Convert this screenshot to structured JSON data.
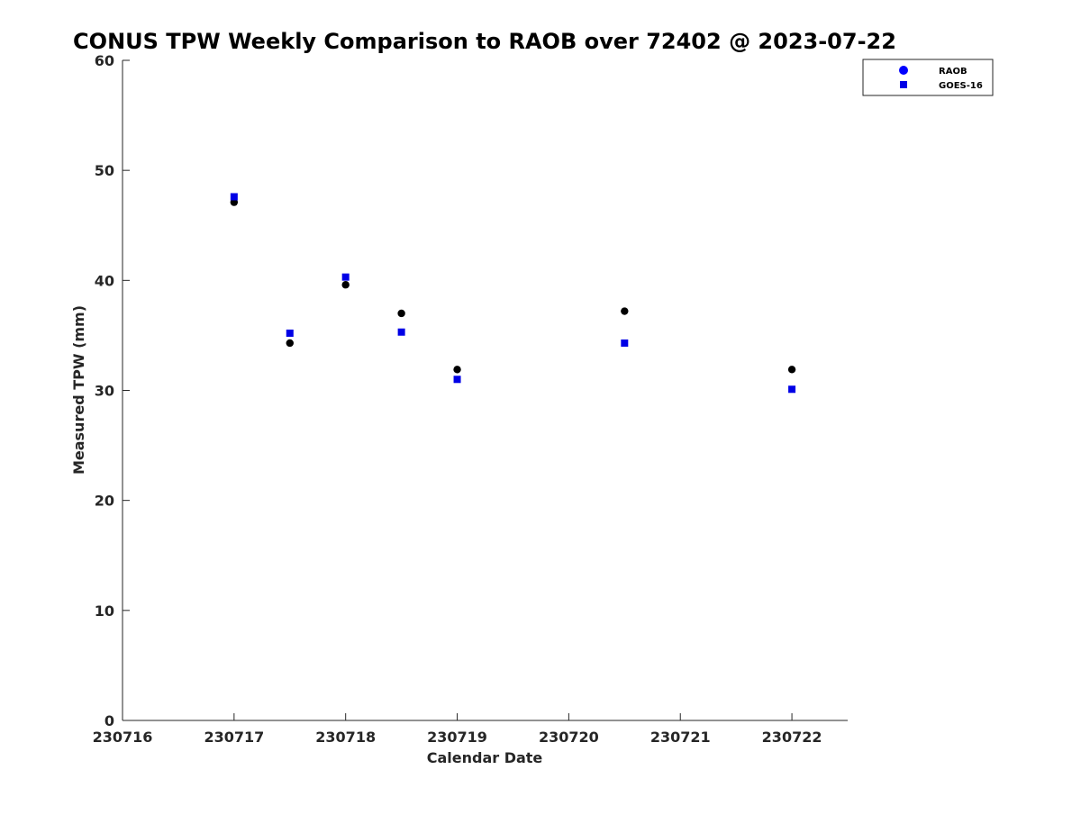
{
  "chart_data": {
    "type": "scatter",
    "title": "CONUS TPW Weekly Comparison to RAOB over 72402 @ 2023-07-22",
    "xlabel": "Calendar Date",
    "ylabel": "Measured TPW (mm)",
    "xlim": [
      "2023-07-16 00:00",
      "2023-07-22 12:00"
    ],
    "ylim": [
      0,
      60
    ],
    "x_ticks": [
      "2023-07-16",
      "2023-07-17",
      "2023-07-18",
      "2023-07-19",
      "2023-07-20",
      "2023-07-21",
      "2023-07-22"
    ],
    "x_tick_labels": [
      "230716",
      "230717",
      "230718",
      "230719",
      "230720",
      "230721",
      "230722"
    ],
    "y_ticks": [
      0,
      10,
      20,
      30,
      40,
      50,
      60
    ],
    "y_tick_labels": [
      "0",
      "10",
      "20",
      "30",
      "40",
      "50",
      "60"
    ],
    "grid": false,
    "legend_position": "top-right",
    "series": [
      {
        "name": "RAOB",
        "marker": "circle",
        "color": "#000000",
        "legend_color": "#0000ff",
        "x": [
          "2023-07-17 00:00",
          "2023-07-17 12:00",
          "2023-07-18 00:00",
          "2023-07-18 12:00",
          "2023-07-19 00:00",
          "2023-07-20 12:00",
          "2023-07-22 00:00"
        ],
        "y": [
          47.1,
          34.3,
          39.6,
          37.0,
          31.9,
          37.2,
          31.9
        ]
      },
      {
        "name": "GOES-16",
        "marker": "square",
        "color": "#0000e6",
        "x": [
          "2023-07-17 00:00",
          "2023-07-17 12:00",
          "2023-07-18 00:00",
          "2023-07-18 12:00",
          "2023-07-19 00:00",
          "2023-07-20 12:00",
          "2023-07-22 00:00"
        ],
        "y": [
          47.6,
          35.2,
          40.3,
          35.3,
          31.0,
          34.3,
          30.1
        ]
      }
    ]
  }
}
